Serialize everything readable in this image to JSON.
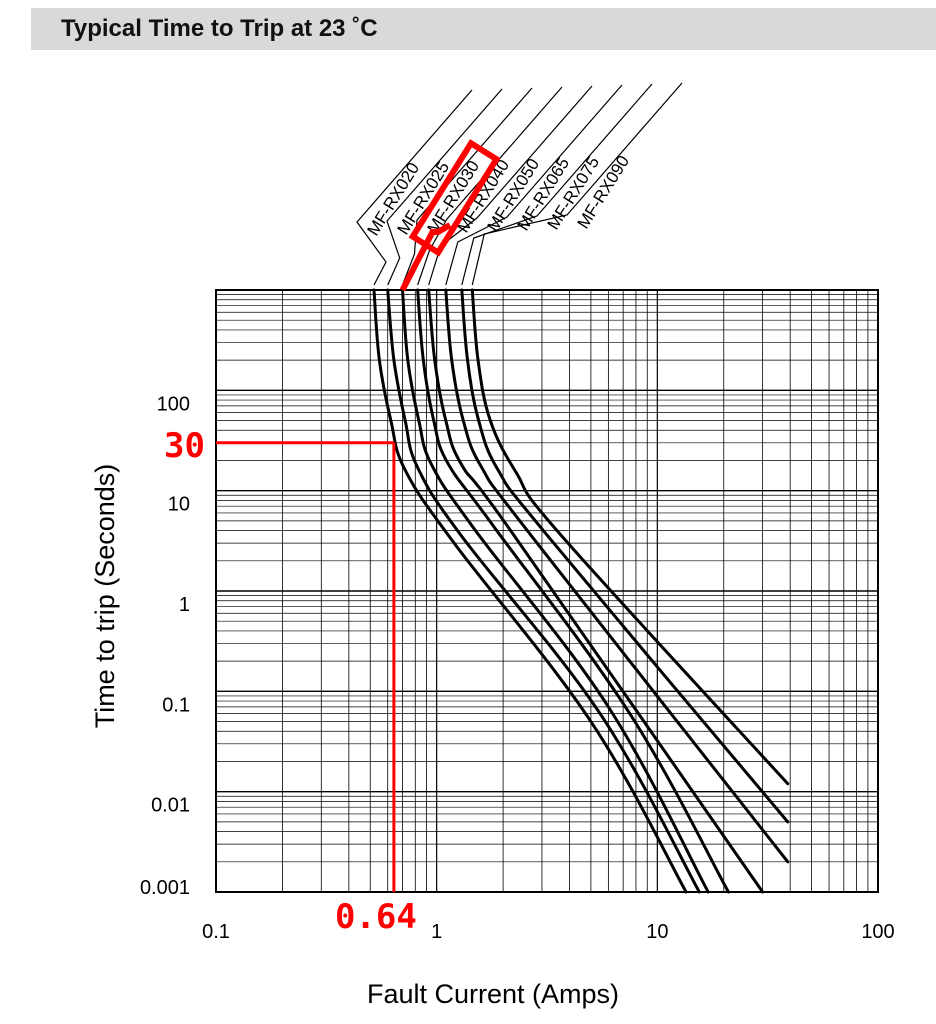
{
  "header": {
    "title": "Typical Time to Trip at 23 ˚C"
  },
  "chart_data": {
    "type": "line",
    "title": "Typical Time to Trip at 23 ˚C",
    "xlabel": "Fault Current (Amps)",
    "ylabel": "Time to trip (Seconds)",
    "xscale": "log",
    "yscale": "log",
    "xlim": [
      0.1,
      100
    ],
    "ylim": [
      0.001,
      1000
    ],
    "x_ticks": [
      "0.1",
      "1",
      "10",
      "100"
    ],
    "y_ticks": [
      "0.001",
      "0.01",
      "0.1",
      "1",
      "10",
      "100"
    ],
    "grid": true,
    "series": [
      {
        "name": "MF-RX020",
        "hold_current": 0.52,
        "knee": [
          0.72,
          16
        ],
        "points": [
          [
            0.52,
            1000
          ],
          [
            0.55,
            200
          ],
          [
            0.62,
            50
          ],
          [
            0.72,
            16
          ],
          [
            1.2,
            3
          ],
          [
            5,
            0.05
          ],
          [
            13.5,
            0.001
          ]
        ]
      },
      {
        "name": "MF-RX025",
        "hold_current": 0.6,
        "knee": [
          0.82,
          17
        ],
        "points": [
          [
            0.6,
            1000
          ],
          [
            0.64,
            200
          ],
          [
            0.72,
            50
          ],
          [
            0.82,
            17
          ],
          [
            1.3,
            3.5
          ],
          [
            5.5,
            0.06
          ],
          [
            15.5,
            0.001
          ]
        ]
      },
      {
        "name": "MF-RX030",
        "hold_current": 0.7,
        "knee": [
          0.95,
          18
        ],
        "points": [
          [
            0.7,
            1000
          ],
          [
            0.74,
            200
          ],
          [
            0.83,
            50
          ],
          [
            0.95,
            18
          ],
          [
            1.5,
            4
          ],
          [
            6,
            0.07
          ],
          [
            17,
            0.001
          ]
        ]
      },
      {
        "name": "MF-RX040",
        "hold_current": 0.82,
        "knee": [
          1.12,
          19
        ],
        "points": [
          [
            0.82,
            1000
          ],
          [
            0.87,
            200
          ],
          [
            0.97,
            50
          ],
          [
            1.12,
            19
          ],
          [
            1.8,
            4.5
          ],
          [
            7.5,
            0.06
          ],
          [
            21,
            0.001
          ]
        ]
      },
      {
        "name": "MF-RX050",
        "hold_current": 0.92,
        "knee": [
          1.3,
          18
        ],
        "points": [
          [
            0.92,
            1000
          ],
          [
            0.98,
            200
          ],
          [
            1.1,
            50
          ],
          [
            1.3,
            18
          ],
          [
            2.2,
            3.8
          ],
          [
            30,
            0.001
          ]
        ]
      },
      {
        "name": "MF-RX065",
        "hold_current": 1.1,
        "knee": [
          1.6,
          17
        ],
        "points": [
          [
            1.1,
            1000
          ],
          [
            1.17,
            200
          ],
          [
            1.32,
            50
          ],
          [
            1.6,
            17
          ],
          [
            2.7,
            3.5
          ],
          [
            39,
            0.002
          ]
        ]
      },
      {
        "name": "MF-RX075",
        "hold_current": 1.3,
        "knee": [
          1.9,
          16
        ],
        "points": [
          [
            1.3,
            1000
          ],
          [
            1.38,
            200
          ],
          [
            1.55,
            50
          ],
          [
            1.9,
            16
          ],
          [
            3.2,
            3.5
          ],
          [
            39,
            0.005
          ]
        ]
      },
      {
        "name": "MF-RX090",
        "hold_current": 1.45,
        "knee": [
          2.3,
          15
        ],
        "points": [
          [
            1.45,
            1000
          ],
          [
            1.54,
            200
          ],
          [
            1.75,
            50
          ],
          [
            2.3,
            15
          ],
          [
            3.7,
            3.5
          ],
          [
            39,
            0.012
          ]
        ]
      }
    ],
    "annotations": [
      {
        "text": "30",
        "axis": "y",
        "value": 30,
        "color": "#ff0000"
      },
      {
        "text": "0.64",
        "axis": "x",
        "value": 0.64,
        "color": "#ff0000"
      }
    ],
    "highlighted_series": "MF-RX030",
    "highlight_color": "#ff0000"
  }
}
